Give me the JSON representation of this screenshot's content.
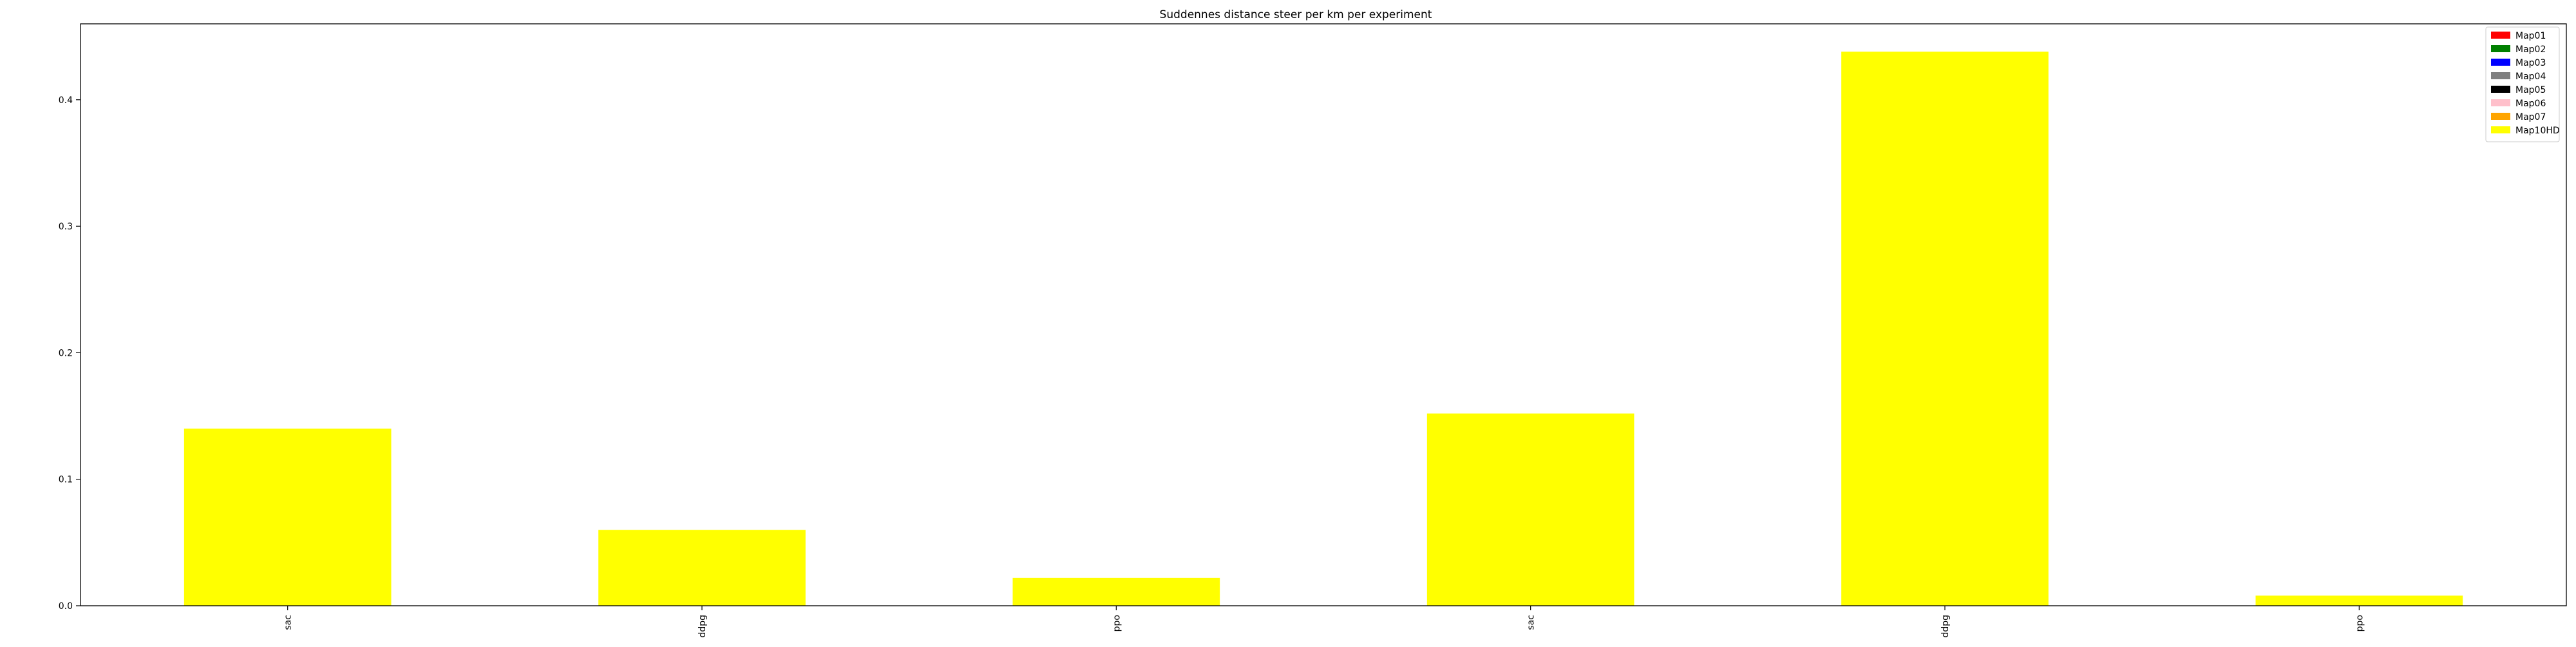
{
  "chart_data": {
    "type": "bar",
    "title": "Suddennes distance steer per km per experiment",
    "xlabel": "",
    "ylabel": "",
    "categories": [
      "sac",
      "ddpg",
      "ppo",
      "sac",
      "ddpg",
      "ppo"
    ],
    "values": [
      0.14,
      0.06,
      0.022,
      0.152,
      0.438,
      0.008
    ],
    "bar_color": "#ffff00",
    "ylim": [
      0,
      0.46
    ],
    "yticks": [
      0.0,
      0.1,
      0.2,
      0.3,
      0.4
    ],
    "ytick_labels": [
      "0.0",
      "0.1",
      "0.2",
      "0.3",
      "0.4"
    ],
    "grid": false,
    "legend": {
      "placement": "top-right",
      "entries": [
        {
          "label": "Map01",
          "color": "#ff0000"
        },
        {
          "label": "Map02",
          "color": "#008000"
        },
        {
          "label": "Map03",
          "color": "#0000ff"
        },
        {
          "label": "Map04",
          "color": "#808080"
        },
        {
          "label": "Map05",
          "color": "#000000"
        },
        {
          "label": "Map06",
          "color": "#ffc0cb"
        },
        {
          "label": "Map07",
          "color": "#ffa500"
        },
        {
          "label": "Map10HD",
          "color": "#ffff00"
        }
      ]
    }
  }
}
